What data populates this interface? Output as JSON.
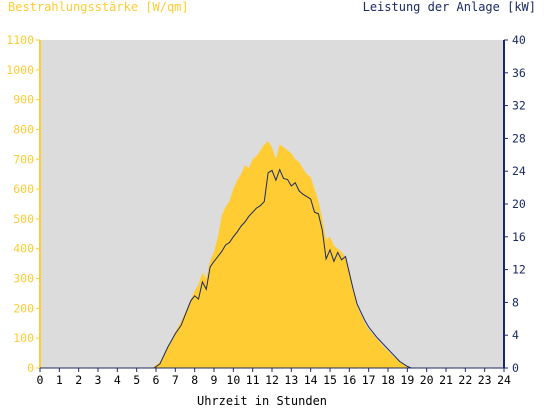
{
  "colors": {
    "irradiance": "#ffcc33",
    "power": "#1a2a66",
    "plot_bg": "#dcdcdc",
    "left_axis": "#ffcc33",
    "right_axis": "#1a2a66"
  },
  "chart_data": {
    "type": "area",
    "left_label": "Bestrahlungsstärke [W/qm]",
    "right_label": "Leistung der Anlage [kW]",
    "xlabel": "Uhrzeit in Stunden",
    "xlim": [
      0,
      24
    ],
    "x_ticks": [
      "0",
      "1",
      "2",
      "3",
      "4",
      "5",
      "6",
      "7",
      "8",
      "9",
      "10",
      "11",
      "12",
      "13",
      "14",
      "15",
      "16",
      "17",
      "18",
      "19",
      "20",
      "21",
      "22",
      "23",
      "24"
    ],
    "ylim_left": [
      0,
      1100
    ],
    "y_ticks_left": [
      "0",
      "100",
      "200",
      "300",
      "400",
      "500",
      "600",
      "700",
      "800",
      "900",
      "1000",
      "1100"
    ],
    "ylim_right": [
      0,
      40
    ],
    "y_ticks_right": [
      "0",
      "4",
      "8",
      "12",
      "16",
      "20",
      "24",
      "28",
      "32",
      "36",
      "40"
    ],
    "series": [
      {
        "name": "Bestrahlungsstärke [W/qm]",
        "axis": "left",
        "points": [
          [
            0,
            0
          ],
          [
            5.8,
            0
          ],
          [
            6.2,
            20
          ],
          [
            6.6,
            70
          ],
          [
            7.0,
            120
          ],
          [
            7.4,
            170
          ],
          [
            7.8,
            230
          ],
          [
            8.0,
            260
          ],
          [
            8.2,
            280
          ],
          [
            8.4,
            320
          ],
          [
            8.6,
            300
          ],
          [
            8.8,
            360
          ],
          [
            9.0,
            390
          ],
          [
            9.2,
            440
          ],
          [
            9.4,
            510
          ],
          [
            9.6,
            540
          ],
          [
            9.8,
            560
          ],
          [
            10.0,
            600
          ],
          [
            10.2,
            630
          ],
          [
            10.4,
            650
          ],
          [
            10.6,
            680
          ],
          [
            10.8,
            670
          ],
          [
            11.0,
            700
          ],
          [
            11.2,
            710
          ],
          [
            11.4,
            730
          ],
          [
            11.6,
            750
          ],
          [
            11.8,
            760
          ],
          [
            12.0,
            740
          ],
          [
            12.2,
            700
          ],
          [
            12.4,
            750
          ],
          [
            12.6,
            740
          ],
          [
            12.8,
            730
          ],
          [
            13.0,
            720
          ],
          [
            13.2,
            700
          ],
          [
            13.4,
            690
          ],
          [
            13.6,
            670
          ],
          [
            13.8,
            650
          ],
          [
            14.0,
            640
          ],
          [
            14.2,
            600
          ],
          [
            14.4,
            560
          ],
          [
            14.6,
            500
          ],
          [
            14.8,
            430
          ],
          [
            15.0,
            440
          ],
          [
            15.2,
            410
          ],
          [
            15.4,
            400
          ],
          [
            15.6,
            390
          ],
          [
            15.8,
            370
          ],
          [
            16.0,
            330
          ],
          [
            16.2,
            260
          ],
          [
            16.4,
            210
          ],
          [
            16.6,
            180
          ],
          [
            16.8,
            150
          ],
          [
            17.0,
            130
          ],
          [
            17.4,
            100
          ],
          [
            17.8,
            70
          ],
          [
            18.2,
            45
          ],
          [
            18.6,
            20
          ],
          [
            19.0,
            5
          ],
          [
            19.2,
            0
          ],
          [
            24,
            0
          ]
        ]
      },
      {
        "name": "Leistung der Anlage [kW]",
        "axis": "right",
        "points": [
          [
            0,
            0
          ],
          [
            5.9,
            0
          ],
          [
            6.2,
            0.5
          ],
          [
            6.6,
            2.5
          ],
          [
            7.0,
            4.2
          ],
          [
            7.3,
            5.2
          ],
          [
            7.6,
            7.0
          ],
          [
            7.8,
            8.2
          ],
          [
            8.0,
            8.8
          ],
          [
            8.2,
            8.4
          ],
          [
            8.4,
            10.5
          ],
          [
            8.6,
            9.6
          ],
          [
            8.8,
            12.3
          ],
          [
            9.0,
            13.0
          ],
          [
            9.2,
            13.6
          ],
          [
            9.4,
            14.2
          ],
          [
            9.6,
            15.0
          ],
          [
            9.8,
            15.3
          ],
          [
            10.0,
            16.0
          ],
          [
            10.2,
            16.6
          ],
          [
            10.4,
            17.3
          ],
          [
            10.6,
            17.8
          ],
          [
            10.8,
            18.5
          ],
          [
            11.0,
            19.0
          ],
          [
            11.2,
            19.5
          ],
          [
            11.4,
            19.8
          ],
          [
            11.6,
            20.3
          ],
          [
            11.8,
            23.8
          ],
          [
            12.0,
            24.1
          ],
          [
            12.2,
            22.9
          ],
          [
            12.4,
            24.2
          ],
          [
            12.6,
            23.1
          ],
          [
            12.8,
            23.0
          ],
          [
            13.0,
            22.2
          ],
          [
            13.2,
            22.6
          ],
          [
            13.4,
            21.6
          ],
          [
            13.6,
            21.2
          ],
          [
            13.8,
            20.9
          ],
          [
            14.0,
            20.6
          ],
          [
            14.2,
            19.0
          ],
          [
            14.4,
            18.8
          ],
          [
            14.6,
            16.8
          ],
          [
            14.8,
            13.3
          ],
          [
            15.0,
            14.4
          ],
          [
            15.2,
            13.0
          ],
          [
            15.4,
            14.1
          ],
          [
            15.6,
            13.2
          ],
          [
            15.8,
            13.6
          ],
          [
            16.0,
            11.6
          ],
          [
            16.2,
            9.6
          ],
          [
            16.4,
            7.8
          ],
          [
            16.6,
            6.8
          ],
          [
            16.8,
            5.8
          ],
          [
            17.0,
            5.0
          ],
          [
            17.4,
            3.8
          ],
          [
            17.8,
            2.8
          ],
          [
            18.2,
            1.8
          ],
          [
            18.6,
            0.8
          ],
          [
            19.0,
            0.2
          ],
          [
            19.2,
            0
          ],
          [
            24,
            0
          ]
        ]
      }
    ]
  }
}
